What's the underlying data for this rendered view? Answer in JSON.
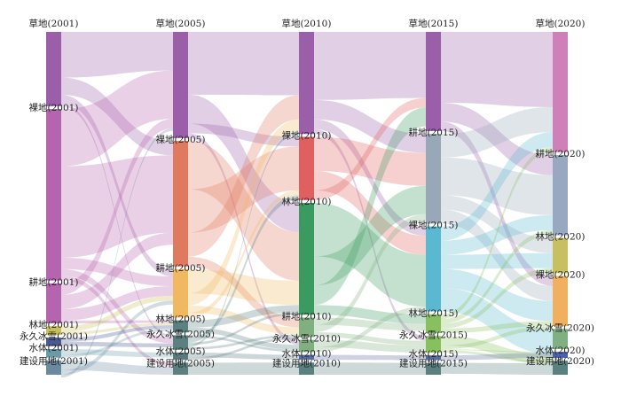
{
  "chart_data": {
    "type": "sankey",
    "columns": [
      {
        "year": "2001",
        "nodes": [
          {
            "id": "grass",
            "label": "草地(2001)",
            "value": 13
          },
          {
            "id": "bare",
            "label": "裸地(2001)",
            "value": 30
          },
          {
            "id": "crop",
            "label": "耕地(2001)",
            "value": 7
          },
          {
            "id": "forest",
            "label": "林地(2001)",
            "value": 1.5
          },
          {
            "id": "snow",
            "label": "永久冰雪(2001)",
            "value": 1.5
          },
          {
            "id": "water",
            "label": "水体(2001)",
            "value": 1.5
          },
          {
            "id": "built",
            "label": "建设用地(2001)",
            "value": 2.5
          }
        ]
      },
      {
        "year": "2005",
        "nodes": [
          {
            "id": "grass",
            "label": "草地(2005)",
            "value": 22
          },
          {
            "id": "bare",
            "label": "裸地(2005)",
            "value": 26
          },
          {
            "id": "crop",
            "label": "耕地(2005)",
            "value": 10
          },
          {
            "id": "forest",
            "label": "林地(2005)",
            "value": 2.5
          },
          {
            "id": "snow",
            "label": "永久冰雪(2005)",
            "value": 3
          },
          {
            "id": "water",
            "label": "水体(2005)",
            "value": 1.5
          },
          {
            "id": "built",
            "label": "建设用地(2005)",
            "value": 2.5
          }
        ]
      },
      {
        "year": "2010",
        "nodes": [
          {
            "id": "grass",
            "label": "草地(2010)",
            "value": 21
          },
          {
            "id": "bare",
            "label": "裸地(2010)",
            "value": 13
          },
          {
            "id": "forest",
            "label": "林地(2010)",
            "value": 23
          },
          {
            "id": "crop",
            "label": "耕地(2010)",
            "value": 4
          },
          {
            "id": "snow",
            "label": "永久冰雪(2010)",
            "value": 2.5
          },
          {
            "id": "water",
            "label": "水体(2010)",
            "value": 1
          },
          {
            "id": "built",
            "label": "建设用地(2010)",
            "value": 2.5
          }
        ]
      },
      {
        "year": "2015",
        "nodes": [
          {
            "id": "grass",
            "label": "草地(2015)",
            "value": 21
          },
          {
            "id": "crop",
            "label": "耕地(2015)",
            "value": 19
          },
          {
            "id": "bare",
            "label": "裸地(2015)",
            "value": 18
          },
          {
            "id": "forest",
            "label": "林地(2015)",
            "value": 4
          },
          {
            "id": "snow",
            "label": "永久冰雪(2015)",
            "value": 3.5
          },
          {
            "id": "water",
            "label": "水体(2015)",
            "value": 1
          },
          {
            "id": "built",
            "label": "建设用地(2015)",
            "value": 2.5
          }
        ]
      },
      {
        "year": "2020",
        "nodes": [
          {
            "id": "grass",
            "label": "草地(2020)",
            "value": 24
          },
          {
            "id": "crop",
            "label": "耕地(2020)",
            "value": 16
          },
          {
            "id": "forest",
            "label": "林地(2020)",
            "value": 7
          },
          {
            "id": "bare",
            "label": "裸地(2020)",
            "value": 10
          },
          {
            "id": "snow",
            "label": "永久冰雪(2020)",
            "value": 4
          },
          {
            "id": "water",
            "label": "水体(2020)",
            "value": 1.2
          },
          {
            "id": "built",
            "label": "建设用地(2020)",
            "value": 2.8
          }
        ]
      }
    ],
    "node_colors": [
      {
        "col": 0,
        "colors": [
          "#9a5fa8",
          "#b565ad",
          "#b565ad",
          "#c8c05a",
          "#4a5a90",
          "#6a9aa8",
          "#6a8aa0"
        ]
      },
      {
        "col": 1,
        "colors": [
          "#9a5fa8",
          "#e07a5f",
          "#f0b860",
          "#5a8080",
          "#5a8080",
          "#5a7a80",
          "#5a8080"
        ]
      },
      {
        "col": 2,
        "colors": [
          "#9a5fa8",
          "#e06060",
          "#3a9a60",
          "#80b080",
          "#80b080",
          "#5a6aa0",
          "#5a8080"
        ]
      },
      {
        "col": 3,
        "colors": [
          "#9a5fa8",
          "#98a8b8",
          "#5ab8d0",
          "#88c060",
          "#88c060",
          "#5a6aa0",
          "#5a8080"
        ]
      },
      {
        "col": 4,
        "colors": [
          "#d080b8",
          "#98a8c0",
          "#c8c060",
          "#f0b060",
          "#80b080",
          "#4a60b0",
          "#5a8080"
        ]
      }
    ],
    "flows": [
      {
        "from": [
          0,
          "grass"
        ],
        "to": [
          1,
          "grass"
        ],
        "value": 8
      },
      {
        "from": [
          0,
          "grass"
        ],
        "to": [
          1,
          "bare"
        ],
        "value": 3
      },
      {
        "from": [
          0,
          "grass"
        ],
        "to": [
          1,
          "crop"
        ],
        "value": 1.5
      },
      {
        "from": [
          0,
          "grass"
        ],
        "to": [
          1,
          "snow"
        ],
        "value": 0.5
      },
      {
        "from": [
          0,
          "bare"
        ],
        "to": [
          1,
          "grass"
        ],
        "value": 10
      },
      {
        "from": [
          0,
          "bare"
        ],
        "to": [
          1,
          "bare"
        ],
        "value": 16
      },
      {
        "from": [
          0,
          "bare"
        ],
        "to": [
          1,
          "crop"
        ],
        "value": 2
      },
      {
        "from": [
          0,
          "bare"
        ],
        "to": [
          1,
          "snow"
        ],
        "value": 1.2
      },
      {
        "from": [
          0,
          "bare"
        ],
        "to": [
          1,
          "built"
        ],
        "value": 0.8
      },
      {
        "from": [
          0,
          "crop"
        ],
        "to": [
          1,
          "grass"
        ],
        "value": 2
      },
      {
        "from": [
          0,
          "crop"
        ],
        "to": [
          1,
          "bare"
        ],
        "value": 2.5
      },
      {
        "from": [
          0,
          "crop"
        ],
        "to": [
          1,
          "crop"
        ],
        "value": 2
      },
      {
        "from": [
          0,
          "crop"
        ],
        "to": [
          1,
          "forest"
        ],
        "value": 0.5
      },
      {
        "from": [
          0,
          "forest"
        ],
        "to": [
          1,
          "crop"
        ],
        "value": 1
      },
      {
        "from": [
          0,
          "forest"
        ],
        "to": [
          1,
          "forest"
        ],
        "value": 0.5
      },
      {
        "from": [
          0,
          "snow"
        ],
        "to": [
          1,
          "forest"
        ],
        "value": 0.7
      },
      {
        "from": [
          0,
          "snow"
        ],
        "to": [
          1,
          "snow"
        ],
        "value": 0.8
      },
      {
        "from": [
          0,
          "water"
        ],
        "to": [
          1,
          "water"
        ],
        "value": 1
      },
      {
        "from": [
          0,
          "water"
        ],
        "to": [
          1,
          "forest"
        ],
        "value": 0.5
      },
      {
        "from": [
          0,
          "built"
        ],
        "to": [
          1,
          "built"
        ],
        "value": 1.7
      },
      {
        "from": [
          0,
          "built"
        ],
        "to": [
          1,
          "crop"
        ],
        "value": 0.8
      },
      {
        "from": [
          0,
          "built"
        ],
        "to": [
          1,
          "grass"
        ],
        "value": 0.5
      },
      {
        "from": [
          1,
          "grass"
        ],
        "to": [
          2,
          "grass"
        ],
        "value": 13
      },
      {
        "from": [
          1,
          "grass"
        ],
        "to": [
          2,
          "forest"
        ],
        "value": 6
      },
      {
        "from": [
          1,
          "grass"
        ],
        "to": [
          2,
          "bare"
        ],
        "value": 2
      },
      {
        "from": [
          1,
          "grass"
        ],
        "to": [
          2,
          "snow"
        ],
        "value": 1
      },
      {
        "from": [
          1,
          "bare"
        ],
        "to": [
          2,
          "forest"
        ],
        "value": 10
      },
      {
        "from": [
          1,
          "bare"
        ],
        "to": [
          2,
          "bare"
        ],
        "value": 9
      },
      {
        "from": [
          1,
          "bare"
        ],
        "to": [
          2,
          "grass"
        ],
        "value": 5
      },
      {
        "from": [
          1,
          "bare"
        ],
        "to": [
          2,
          "crop"
        ],
        "value": 2
      },
      {
        "from": [
          1,
          "crop"
        ],
        "to": [
          2,
          "forest"
        ],
        "value": 5
      },
      {
        "from": [
          1,
          "crop"
        ],
        "to": [
          2,
          "grass"
        ],
        "value": 2.5
      },
      {
        "from": [
          1,
          "crop"
        ],
        "to": [
          2,
          "crop"
        ],
        "value": 1.5
      },
      {
        "from": [
          1,
          "crop"
        ],
        "to": [
          2,
          "bare"
        ],
        "value": 1
      },
      {
        "from": [
          1,
          "forest"
        ],
        "to": [
          2,
          "forest"
        ],
        "value": 1.5
      },
      {
        "from": [
          1,
          "forest"
        ],
        "to": [
          2,
          "snow"
        ],
        "value": 1
      },
      {
        "from": [
          1,
          "snow"
        ],
        "to": [
          2,
          "snow"
        ],
        "value": 0.5
      },
      {
        "from": [
          1,
          "snow"
        ],
        "to": [
          2,
          "bare"
        ],
        "value": 1
      },
      {
        "from": [
          1,
          "snow"
        ],
        "to": [
          2,
          "forest"
        ],
        "value": 0.5
      },
      {
        "from": [
          1,
          "snow"
        ],
        "to": [
          2,
          "grass"
        ],
        "value": 0.5
      },
      {
        "from": [
          1,
          "snow"
        ],
        "to": [
          2,
          "crop"
        ],
        "value": 0.5
      },
      {
        "from": [
          1,
          "water"
        ],
        "to": [
          2,
          "water"
        ],
        "value": 1
      },
      {
        "from": [
          1,
          "water"
        ],
        "to": [
          2,
          "crop"
        ],
        "value": 0.5
      },
      {
        "from": [
          1,
          "built"
        ],
        "to": [
          2,
          "built"
        ],
        "value": 2.5
      },
      {
        "from": [
          2,
          "grass"
        ],
        "to": [
          3,
          "grass"
        ],
        "value": 14
      },
      {
        "from": [
          2,
          "grass"
        ],
        "to": [
          3,
          "crop"
        ],
        "value": 4
      },
      {
        "from": [
          2,
          "grass"
        ],
        "to": [
          3,
          "bare"
        ],
        "value": 2
      },
      {
        "from": [
          2,
          "grass"
        ],
        "to": [
          3,
          "snow"
        ],
        "value": 1
      },
      {
        "from": [
          2,
          "bare"
        ],
        "to": [
          3,
          "crop"
        ],
        "value": 7
      },
      {
        "from": [
          2,
          "bare"
        ],
        "to": [
          3,
          "bare"
        ],
        "value": 4
      },
      {
        "from": [
          2,
          "bare"
        ],
        "to": [
          3,
          "grass"
        ],
        "value": 2
      },
      {
        "from": [
          2,
          "forest"
        ],
        "to": [
          3,
          "bare"
        ],
        "value": 11
      },
      {
        "from": [
          2,
          "forest"
        ],
        "to": [
          3,
          "crop"
        ],
        "value": 6
      },
      {
        "from": [
          2,
          "forest"
        ],
        "to": [
          3,
          "grass"
        ],
        "value": 4
      },
      {
        "from": [
          2,
          "forest"
        ],
        "to": [
          3,
          "forest"
        ],
        "value": 2
      },
      {
        "from": [
          2,
          "crop"
        ],
        "to": [
          3,
          "forest"
        ],
        "value": 1.5
      },
      {
        "from": [
          2,
          "crop"
        ],
        "to": [
          3,
          "crop"
        ],
        "value": 1.5
      },
      {
        "from": [
          2,
          "crop"
        ],
        "to": [
          3,
          "snow"
        ],
        "value": 1
      },
      {
        "from": [
          2,
          "snow"
        ],
        "to": [
          3,
          "snow"
        ],
        "value": 1.5
      },
      {
        "from": [
          2,
          "snow"
        ],
        "to": [
          3,
          "bare"
        ],
        "value": 1
      },
      {
        "from": [
          2,
          "water"
        ],
        "to": [
          3,
          "water"
        ],
        "value": 1
      },
      {
        "from": [
          2,
          "built"
        ],
        "to": [
          3,
          "built"
        ],
        "value": 2.5
      },
      {
        "from": [
          3,
          "grass"
        ],
        "to": [
          4,
          "grass"
        ],
        "value": 15
      },
      {
        "from": [
          3,
          "grass"
        ],
        "to": [
          4,
          "crop"
        ],
        "value": 4
      },
      {
        "from": [
          3,
          "grass"
        ],
        "to": [
          4,
          "bare"
        ],
        "value": 2
      },
      {
        "from": [
          3,
          "crop"
        ],
        "to": [
          4,
          "grass"
        ],
        "value": 5
      },
      {
        "from": [
          3,
          "crop"
        ],
        "to": [
          4,
          "crop"
        ],
        "value": 8
      },
      {
        "from": [
          3,
          "crop"
        ],
        "to": [
          4,
          "forest"
        ],
        "value": 3
      },
      {
        "from": [
          3,
          "crop"
        ],
        "to": [
          4,
          "bare"
        ],
        "value": 3
      },
      {
        "from": [
          3,
          "bare"
        ],
        "to": [
          4,
          "grass"
        ],
        "value": 3
      },
      {
        "from": [
          3,
          "bare"
        ],
        "to": [
          4,
          "crop"
        ],
        "value": 3
      },
      {
        "from": [
          3,
          "bare"
        ],
        "to": [
          4,
          "forest"
        ],
        "value": 3
      },
      {
        "from": [
          3,
          "bare"
        ],
        "to": [
          4,
          "bare"
        ],
        "value": 4
      },
      {
        "from": [
          3,
          "bare"
        ],
        "to": [
          4,
          "snow"
        ],
        "value": 5
      },
      {
        "from": [
          3,
          "forest"
        ],
        "to": [
          4,
          "grass"
        ],
        "value": 1
      },
      {
        "from": [
          3,
          "forest"
        ],
        "to": [
          4,
          "crop"
        ],
        "value": 1
      },
      {
        "from": [
          3,
          "forest"
        ],
        "to": [
          4,
          "forest"
        ],
        "value": 1
      },
      {
        "from": [
          3,
          "forest"
        ],
        "to": [
          4,
          "bare"
        ],
        "value": 1
      },
      {
        "from": [
          3,
          "snow"
        ],
        "to": [
          4,
          "snow"
        ],
        "value": 2
      },
      {
        "from": [
          3,
          "snow"
        ],
        "to": [
          4,
          "bare"
        ],
        "value": 0.8
      },
      {
        "from": [
          3,
          "snow"
        ],
        "to": [
          4,
          "water"
        ],
        "value": 0.2
      },
      {
        "from": [
          3,
          "snow"
        ],
        "to": [
          4,
          "built"
        ],
        "value": 0.5
      },
      {
        "from": [
          3,
          "water"
        ],
        "to": [
          4,
          "water"
        ],
        "value": 1
      },
      {
        "from": [
          3,
          "built"
        ],
        "to": [
          4,
          "built"
        ],
        "value": 2.3
      }
    ]
  }
}
